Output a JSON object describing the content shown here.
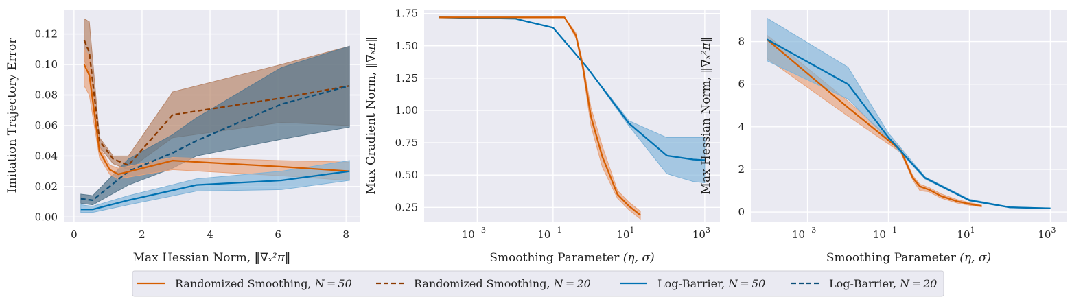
{
  "colors": {
    "rs50": "#d55e00",
    "rs20": "#8c3a00",
    "lb50": "#0072b2",
    "lb20": "#0b4f7a",
    "band_rs": "#e8a27a",
    "band_lb": "#7fb3d8",
    "band_rs20": "#b8876c",
    "band_lb20": "#5b7a8f",
    "plot_bg": "#eaeaf2",
    "grid": "#ffffff"
  },
  "legend": {
    "items": [
      {
        "key": "rs50",
        "label": "Randomized Smoothing, ",
        "n": "N = 50",
        "dashed": false
      },
      {
        "key": "rs20",
        "label": "Randomized Smoothing, ",
        "n": "N = 20",
        "dashed": true
      },
      {
        "key": "lb50",
        "label": "Log-Barrier, ",
        "n": "N = 50",
        "dashed": false
      },
      {
        "key": "lb20",
        "label": "Log-Barrier, ",
        "n": "N = 20",
        "dashed": true
      }
    ]
  },
  "chart_data": [
    {
      "type": "line",
      "title": "",
      "xlabel_text": "Max Hessian Norm, ",
      "xlabel_math": "‖∇ₓ²π‖",
      "ylabel_text": "Imitation Trajectory Error",
      "xscale": "linear",
      "xlim": [
        -0.3,
        8.4
      ],
      "ylim": [
        -0.003,
        0.136
      ],
      "xticks": [
        0,
        2,
        4,
        6,
        8
      ],
      "xtick_labels": [
        "0",
        "2",
        "4",
        "6",
        "8"
      ],
      "yticks": [
        0.0,
        0.02,
        0.04,
        0.06,
        0.08,
        0.1,
        0.12
      ],
      "ytick_labels": [
        "0.00",
        "0.02",
        "0.04",
        "0.06",
        "0.08",
        "0.10",
        "0.12"
      ],
      "series": [
        {
          "key": "rs20",
          "name": "Randomized Smoothing, N=20",
          "dashed": true,
          "x": [
            0.3,
            0.45,
            0.75,
            1.15,
            1.6,
            2.9,
            6.1,
            8.1
          ],
          "y": [
            0.116,
            0.108,
            0.05,
            0.038,
            0.034,
            0.067,
            0.078,
            0.086
          ],
          "lo": [
            0.103,
            0.095,
            0.046,
            0.035,
            0.031,
            0.052,
            0.062,
            0.06
          ],
          "hi": [
            0.13,
            0.128,
            0.052,
            0.04,
            0.04,
            0.082,
            0.1,
            0.112
          ]
        },
        {
          "key": "lb20",
          "name": "Log-Barrier, N=20",
          "dashed": true,
          "x": [
            0.2,
            0.55,
            1.6,
            2.9,
            3.6,
            6.1,
            8.1
          ],
          "y": [
            0.012,
            0.011,
            0.03,
            0.042,
            0.05,
            0.074,
            0.086
          ],
          "lo": [
            0.009,
            0.008,
            0.021,
            0.032,
            0.04,
            0.051,
            0.059
          ],
          "hi": [
            0.015,
            0.014,
            0.038,
            0.054,
            0.065,
            0.098,
            0.112
          ]
        },
        {
          "key": "rs50",
          "name": "Randomized Smoothing, N=50",
          "dashed": false,
          "x": [
            0.3,
            0.45,
            0.75,
            1.05,
            1.3,
            2.9,
            6.1,
            8.1
          ],
          "y": [
            0.1,
            0.093,
            0.043,
            0.031,
            0.028,
            0.037,
            0.033,
            0.03
          ],
          "lo": [
            0.086,
            0.08,
            0.039,
            0.028,
            0.025,
            0.031,
            0.027,
            0.024
          ],
          "hi": [
            0.11,
            0.105,
            0.046,
            0.034,
            0.032,
            0.039,
            0.037,
            0.036
          ]
        },
        {
          "key": "lb50",
          "name": "Log-Barrier, N=50",
          "dashed": false,
          "x": [
            0.2,
            0.55,
            1.6,
            3.6,
            6.1,
            8.1
          ],
          "y": [
            0.005,
            0.005,
            0.011,
            0.021,
            0.024,
            0.03
          ],
          "lo": [
            0.003,
            0.003,
            0.008,
            0.017,
            0.018,
            0.024
          ],
          "hi": [
            0.008,
            0.007,
            0.014,
            0.025,
            0.03,
            0.037
          ]
        }
      ]
    },
    {
      "type": "line",
      "title": "",
      "xlabel_text": "Smoothing Parameter ",
      "xlabel_math": "(η, σ)",
      "ylabel_text": "Max Gradient Norm, ",
      "ylabel_math": "‖∇ₓπ‖",
      "xscale": "log",
      "xlim": [
        3.98e-05,
        2512
      ],
      "ylim": [
        0.14,
        1.78
      ],
      "xticks": [
        0.001,
        0.1,
        10,
        1000
      ],
      "xtick_labels": [
        "10",
        "10",
        "10",
        "10"
      ],
      "xtick_exps": [
        "−3",
        "−1",
        "1",
        "3"
      ],
      "yticks": [
        0.25,
        0.5,
        0.75,
        1.0,
        1.25,
        1.5,
        1.75
      ],
      "ytick_labels": [
        "0.25",
        "0.50",
        "0.75",
        "1.00",
        "1.25",
        "1.50",
        "1.75"
      ],
      "series": [
        {
          "key": "lb50",
          "name": "Log-Barrier, N=50",
          "dashed": false,
          "x": [
            0.0001,
            0.01,
            0.1,
            0.8,
            10,
            100,
            500,
            1000
          ],
          "y": [
            1.72,
            1.71,
            1.64,
            1.33,
            0.9,
            0.65,
            0.62,
            0.615
          ],
          "lo": [
            1.72,
            1.71,
            1.64,
            1.33,
            0.88,
            0.51,
            0.45,
            0.44
          ],
          "hi": [
            1.72,
            1.71,
            1.64,
            1.33,
            0.92,
            0.79,
            0.79,
            0.79
          ]
        },
        {
          "key": "rs50",
          "name": "Randomized Smoothing, N=50",
          "dashed": false,
          "x": [
            0.0001,
            0.01,
            0.2,
            0.4,
            0.6,
            1.0,
            2.0,
            5.0,
            10,
            20
          ],
          "y": [
            1.72,
            1.72,
            1.72,
            1.58,
            1.35,
            0.95,
            0.64,
            0.35,
            0.26,
            0.19
          ],
          "lo": [
            1.72,
            1.72,
            1.72,
            1.56,
            1.32,
            0.88,
            0.56,
            0.32,
            0.23,
            0.16
          ],
          "hi": [
            1.72,
            1.72,
            1.72,
            1.6,
            1.38,
            1.02,
            0.72,
            0.38,
            0.29,
            0.22
          ]
        }
      ]
    },
    {
      "type": "line",
      "title": "",
      "xlabel_text": "Smoothing Parameter ",
      "xlabel_math": "(η, σ)",
      "ylabel_text": "Max Hessian Norm, ",
      "ylabel_math": "‖∇ₓ²π‖",
      "xscale": "log",
      "xlim": [
        3.98e-05,
        2512
      ],
      "ylim": [
        -0.45,
        9.5
      ],
      "xticks": [
        0.001,
        0.1,
        10,
        1000
      ],
      "xtick_labels": [
        "10",
        "10",
        "10",
        "10"
      ],
      "xtick_exps": [
        "−3",
        "−1",
        "1",
        "3"
      ],
      "yticks": [
        0,
        2,
        4,
        6,
        8
      ],
      "ytick_labels": [
        "0",
        "2",
        "4",
        "6",
        "8"
      ],
      "series": [
        {
          "key": "rs50",
          "name": "Randomized Smoothing, N=50",
          "dashed": false,
          "x": [
            0.0001,
            0.01,
            0.2,
            0.4,
            0.6,
            1.0,
            2.0,
            5.0,
            10,
            20
          ],
          "y": [
            8.1,
            4.9,
            2.9,
            1.6,
            1.2,
            1.05,
            0.75,
            0.5,
            0.38,
            0.28
          ],
          "lo": [
            7.2,
            4.5,
            2.8,
            1.5,
            1.0,
            0.95,
            0.65,
            0.42,
            0.32,
            0.24
          ],
          "hi": [
            8.3,
            5.2,
            3.0,
            1.7,
            1.3,
            1.15,
            0.85,
            0.58,
            0.44,
            0.32
          ]
        },
        {
          "key": "lb50",
          "name": "Log-Barrier, N=50",
          "dashed": false,
          "x": [
            0.0001,
            0.01,
            0.1,
            0.8,
            10,
            100,
            1000
          ],
          "y": [
            8.1,
            6.0,
            3.5,
            1.6,
            0.55,
            0.22,
            0.17
          ],
          "lo": [
            7.1,
            5.3,
            3.4,
            1.55,
            0.52,
            0.2,
            0.15
          ],
          "hi": [
            9.1,
            6.8,
            3.7,
            1.65,
            0.6,
            0.24,
            0.19
          ]
        }
      ]
    }
  ]
}
